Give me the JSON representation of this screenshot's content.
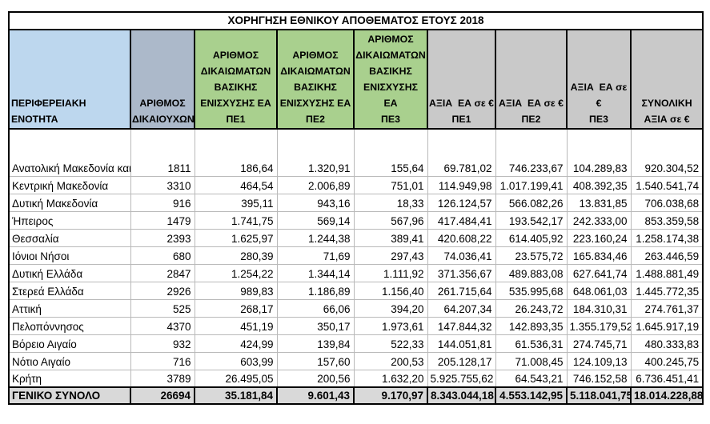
{
  "title": "ΧΟΡΗΓΗΣΗ ΕΘΝΙΚΟΥ ΑΠΟΘΕΜΑΤΟΣ ΕΤΟΥΣ 2018",
  "colors": {
    "header_region_blue": "#BDD7EE",
    "header_beneficiaries_bluegray": "#ACB9CA",
    "header_rights_green": "#A9D08E",
    "header_value_gray": "#C9C9C9",
    "total_row_gray": "#D9D9D9",
    "grid_line": "#B9B9B9",
    "border_black": "#000000",
    "text": "#000000"
  },
  "table": {
    "header_display": [
      "ΠΕΡΙΦΕΡΕΙΑΚΗ ΕΝΟΤΗΤΑ",
      "ΑΡΙΘΜΟΣ\nΔΙΚΑΙΟΥΧΩΝ",
      "ΑΡΙΘΜΟΣ\nΔΙΚΑΙΩΜΑΤΩΝ\nΒΑΣΙΚΗΣ\nΕΝΙΣΧΥΣΗΣ ΕΑ\nΠΕ1",
      "ΑΡΙΘΜΟΣ\nΔΙΚΑΙΩΜΑΤΩΝ\nΒΑΣΙΚΗΣ\nΕΝΙΣΧΥΣΗΣ ΕΑ\nΠΕ2",
      "ΑΡΙΘΜΟΣ\nΔΙΚΑΙΩΜΑΤΩΝ\nΒΑΣΙΚΗΣ\nΕΝΙΣΧΥΣΗΣ ΕΑ\nΠΕ3",
      "ΑΞΙΑ  ΕΑ σε €\nΠΕ1",
      "ΑΞΙΑ  ΕΑ σε €\nΠΕ2",
      "ΑΞΙΑ  ΕΑ σε €\nΠΕ3",
      "ΣΥΝΟΛΙΚΗ\nΑΞΙΑ σε €"
    ]
  },
  "chart_data": {
    "type": "table",
    "title": "ΧΟΡΗΓΗΣΗ ΕΘΝΙΚΟΥ ΑΠΟΘΕΜΑΤΟΣ ΕΤΟΥΣ 2018",
    "columns": [
      "ΠΕΡΙΦΕΡΕΙΑΚΗ ΕΝΟΤΗΤΑ",
      "ΑΡΙΘΜΟΣ ΔΙΚΑΙΟΥΧΩΝ",
      "ΑΡΙΘΜΟΣ ΔΙΚΑΙΩΜΑΤΩΝ ΒΑΣΙΚΗΣ ΕΝΙΣΧΥΣΗΣ ΕΑ ΠΕ1",
      "ΑΡΙΘΜΟΣ ΔΙΚΑΙΩΜΑΤΩΝ ΒΑΣΙΚΗΣ ΕΝΙΣΧΥΣΗΣ ΕΑ ΠΕ2",
      "ΑΡΙΘΜΟΣ ΔΙΚΑΙΩΜΑΤΩΝ ΒΑΣΙΚΗΣ ΕΝΙΣΧΥΣΗΣ ΕΑ ΠΕ3",
      "ΑΞΙΑ ΕΑ σε € ΠΕ1",
      "ΑΞΙΑ ΕΑ σε € ΠΕ2",
      "ΑΞΙΑ ΕΑ σε € ΠΕ3",
      "ΣΥΝΟΛΙΚΗ ΑΞΙΑ σε €"
    ],
    "rows": [
      [
        "Ανατολική  Μακεδονία και Θράκη",
        "1811",
        "186,64",
        "1.320,91",
        "155,64",
        "69.781,02",
        "746.233,67",
        "104.289,83",
        "920.304,52"
      ],
      [
        "Κεντρική  Μακεδονία",
        "3310",
        "464,54",
        "2.006,89",
        "751,01",
        "114.949,98",
        "1.017.199,41",
        "408.392,35",
        "1.540.541,74"
      ],
      [
        "Δυτική Μακεδονία",
        "916",
        "395,11",
        "943,16",
        "18,33",
        "126.124,57",
        "566.082,26",
        "13.831,85",
        "706.038,68"
      ],
      [
        "Ήπειρος",
        "1479",
        "1.741,75",
        "569,14",
        "567,96",
        "417.484,41",
        "193.542,17",
        "242.333,00",
        "853.359,58"
      ],
      [
        "Θεσσαλία",
        "2393",
        "1.625,97",
        "1.244,38",
        "389,41",
        "420.608,22",
        "614.405,92",
        "223.160,24",
        "1.258.174,38"
      ],
      [
        "Ιόνιοι Νήσοι",
        "680",
        "280,39",
        "71,69",
        "297,43",
        "74.036,41",
        "23.575,72",
        "165.834,46",
        "263.446,59"
      ],
      [
        "Δυτική Ελλάδα",
        "2847",
        "1.254,22",
        "1.344,14",
        "1.111,92",
        "371.356,67",
        "489.883,08",
        "627.641,74",
        "1.488.881,49"
      ],
      [
        "Στερεά Ελλάδα",
        "2926",
        "989,83",
        "1.186,89",
        "1.156,40",
        "261.715,64",
        "535.995,68",
        "648.061,03",
        "1.445.772,35"
      ],
      [
        "Αττική",
        "525",
        "268,17",
        "66,06",
        "394,20",
        "64.207,34",
        "26.243,72",
        "184.310,31",
        "274.761,37"
      ],
      [
        "Πελοπόννησος",
        "4370",
        "451,19",
        "350,17",
        "1.973,61",
        "147.844,32",
        "142.893,35",
        "1.355.179,52",
        "1.645.917,19"
      ],
      [
        "Βόρειο Αιγαίο",
        "932",
        "424,99",
        "139,84",
        "522,33",
        "144.051,81",
        "61.536,31",
        "274.745,71",
        "480.333,83"
      ],
      [
        "Νότιο Αιγαίο",
        "716",
        "603,99",
        "157,60",
        "200,53",
        "205.128,17",
        "71.008,45",
        "124.109,13",
        "400.245,75"
      ],
      [
        "Κρήτη",
        "3789",
        "26.495,05",
        "200,56",
        "1.632,20",
        "5.925.755,62",
        "64.543,21",
        "746.152,58",
        "6.736.451,41"
      ]
    ],
    "total_row": [
      "ΓΕΝΙΚΟ ΣΥΝΟΛΟ",
      "26694",
      "35.181,84",
      "9.601,43",
      "9.170,97",
      "8.343.044,18",
      "4.553.142,95",
      "5.118.041,75",
      "18.014.228,88"
    ]
  }
}
